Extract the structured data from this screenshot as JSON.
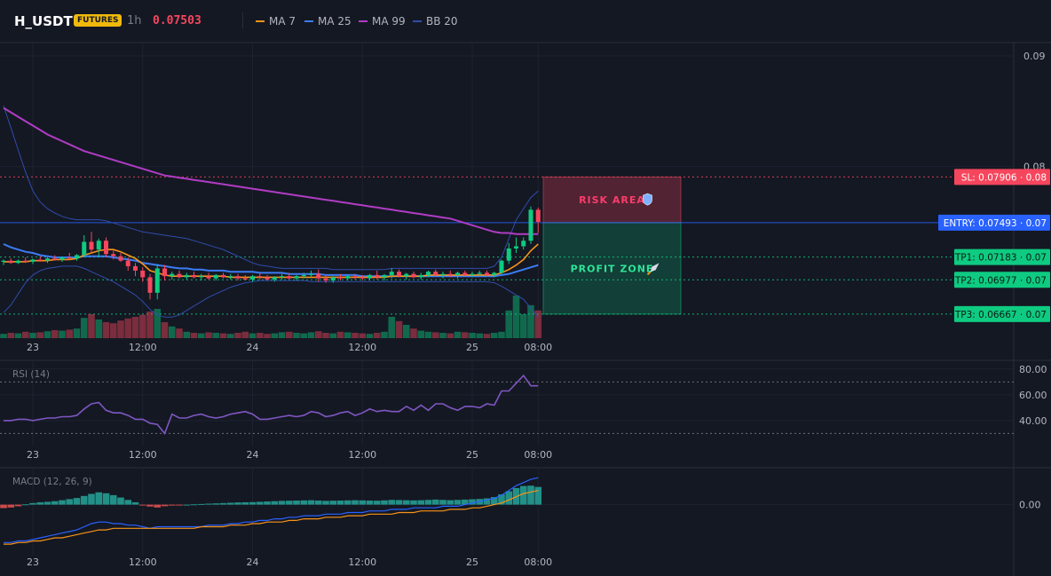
{
  "header": {
    "symbol": "H_USDT",
    "badge": "FUTURES",
    "timeframe": "1h",
    "price": "0.07503",
    "indicators": [
      {
        "label": "MA 7",
        "color": "#f7931a"
      },
      {
        "label": "MA 25",
        "color": "#3b7cf4"
      },
      {
        "label": "MA 99",
        "color": "#b03cc4"
      },
      {
        "label": "BB 20",
        "color": "#2f4dab"
      }
    ]
  },
  "chart_data": {
    "type": "candlestick",
    "x_labels": [
      "23",
      "12:00",
      "24",
      "12:00",
      "25",
      "08:00"
    ],
    "price_axis": {
      "ylim": [
        0.0645,
        0.0912
      ],
      "ticks": [
        {
          "v": 0.09,
          "label": "0.09"
        },
        {
          "v": 0.08,
          "label": "0.08"
        }
      ]
    },
    "candles": [
      [
        0.0714,
        0.0716,
        0.0711,
        0.0715
      ],
      [
        0.0715,
        0.0717,
        0.0712,
        0.0713
      ],
      [
        0.0713,
        0.0716,
        0.0712,
        0.0715
      ],
      [
        0.0715,
        0.0718,
        0.0713,
        0.0714
      ],
      [
        0.0714,
        0.0717,
        0.0712,
        0.0716
      ],
      [
        0.0716,
        0.0719,
        0.0714,
        0.0715
      ],
      [
        0.0715,
        0.0718,
        0.0713,
        0.0717
      ],
      [
        0.0717,
        0.072,
        0.0715,
        0.0716
      ],
      [
        0.0716,
        0.0719,
        0.0714,
        0.0718
      ],
      [
        0.0718,
        0.0722,
        0.0716,
        0.0717
      ],
      [
        0.0717,
        0.0721,
        0.0715,
        0.072
      ],
      [
        0.072,
        0.0738,
        0.0718,
        0.0732
      ],
      [
        0.0732,
        0.0741,
        0.0722,
        0.0725
      ],
      [
        0.0725,
        0.0735,
        0.0718,
        0.0733
      ],
      [
        0.0733,
        0.0736,
        0.0718,
        0.0721
      ],
      [
        0.0721,
        0.0724,
        0.0716,
        0.0719
      ],
      [
        0.0719,
        0.0722,
        0.0714,
        0.0715
      ],
      [
        0.0715,
        0.0718,
        0.0706,
        0.071
      ],
      [
        0.071,
        0.0713,
        0.0701,
        0.0706
      ],
      [
        0.0706,
        0.0709,
        0.0696,
        0.07
      ],
      [
        0.07,
        0.0703,
        0.068,
        0.0686
      ],
      [
        0.0686,
        0.0712,
        0.068,
        0.0708
      ],
      [
        0.0708,
        0.0711,
        0.0697,
        0.0701
      ],
      [
        0.0701,
        0.0705,
        0.0698,
        0.0703
      ],
      [
        0.0703,
        0.0706,
        0.0699,
        0.07
      ],
      [
        0.07,
        0.0704,
        0.0698,
        0.0702
      ],
      [
        0.0702,
        0.0705,
        0.0699,
        0.07
      ],
      [
        0.07,
        0.0703,
        0.0697,
        0.0701
      ],
      [
        0.0701,
        0.0704,
        0.0698,
        0.0699
      ],
      [
        0.0699,
        0.0703,
        0.0697,
        0.0702
      ],
      [
        0.0702,
        0.0704,
        0.0699,
        0.07
      ],
      [
        0.07,
        0.0703,
        0.0698,
        0.0701
      ],
      [
        0.0701,
        0.0703,
        0.0697,
        0.0699
      ],
      [
        0.0699,
        0.0702,
        0.0697,
        0.0698
      ],
      [
        0.0698,
        0.0702,
        0.0696,
        0.0701
      ],
      [
        0.0701,
        0.0704,
        0.0698,
        0.07
      ],
      [
        0.07,
        0.0702,
        0.0697,
        0.0698
      ],
      [
        0.0698,
        0.0701,
        0.0696,
        0.07
      ],
      [
        0.07,
        0.0703,
        0.0698,
        0.0701
      ],
      [
        0.0701,
        0.0704,
        0.0698,
        0.0699
      ],
      [
        0.0699,
        0.0702,
        0.0697,
        0.0701
      ],
      [
        0.0701,
        0.0704,
        0.0699,
        0.0702
      ],
      [
        0.0702,
        0.0706,
        0.07,
        0.0703
      ],
      [
        0.0703,
        0.0707,
        0.0696,
        0.0699
      ],
      [
        0.0699,
        0.0702,
        0.0695,
        0.0697
      ],
      [
        0.0697,
        0.0701,
        0.0695,
        0.07
      ],
      [
        0.07,
        0.0703,
        0.0697,
        0.0699
      ],
      [
        0.0699,
        0.0702,
        0.0697,
        0.0701
      ],
      [
        0.0701,
        0.0703,
        0.0698,
        0.07
      ],
      [
        0.07,
        0.0702,
        0.0697,
        0.0699
      ],
      [
        0.0699,
        0.0703,
        0.0697,
        0.0702
      ],
      [
        0.0702,
        0.0706,
        0.0698,
        0.07
      ],
      [
        0.07,
        0.0703,
        0.0697,
        0.0702
      ],
      [
        0.0702,
        0.0708,
        0.0699,
        0.0705
      ],
      [
        0.0705,
        0.0707,
        0.07,
        0.0701
      ],
      [
        0.0701,
        0.0704,
        0.0698,
        0.0703
      ],
      [
        0.0703,
        0.0705,
        0.0699,
        0.07
      ],
      [
        0.07,
        0.0704,
        0.0698,
        0.0702
      ],
      [
        0.0702,
        0.0706,
        0.07,
        0.0705
      ],
      [
        0.0705,
        0.0707,
        0.0701,
        0.0702
      ],
      [
        0.0702,
        0.0705,
        0.0699,
        0.0703
      ],
      [
        0.0703,
        0.0706,
        0.07,
        0.0702
      ],
      [
        0.0702,
        0.0705,
        0.0699,
        0.0704
      ],
      [
        0.0704,
        0.0706,
        0.0701,
        0.0702
      ],
      [
        0.0702,
        0.0705,
        0.07,
        0.0703
      ],
      [
        0.0703,
        0.0706,
        0.0701,
        0.0704
      ],
      [
        0.0704,
        0.0706,
        0.0701,
        0.0702
      ],
      [
        0.0702,
        0.0705,
        0.07,
        0.0704
      ],
      [
        0.0704,
        0.0716,
        0.0703,
        0.0715
      ],
      [
        0.0715,
        0.0731,
        0.0712,
        0.0726
      ],
      [
        0.0726,
        0.0736,
        0.0722,
        0.0728
      ],
      [
        0.0728,
        0.0736,
        0.0725,
        0.0733
      ],
      [
        0.0733,
        0.0764,
        0.073,
        0.0761
      ],
      [
        0.0761,
        0.0763,
        0.074,
        0.075
      ]
    ],
    "volume": [
      8,
      10,
      9,
      12,
      10,
      11,
      13,
      15,
      14,
      16,
      18,
      38,
      45,
      35,
      30,
      28,
      33,
      37,
      40,
      44,
      50,
      55,
      30,
      22,
      18,
      12,
      10,
      9,
      11,
      10,
      9,
      8,
      10,
      12,
      9,
      10,
      8,
      9,
      11,
      12,
      10,
      9,
      11,
      13,
      10,
      9,
      12,
      11,
      10,
      9,
      8,
      10,
      12,
      40,
      32,
      25,
      18,
      14,
      12,
      11,
      10,
      9,
      12,
      11,
      10,
      9,
      8,
      10,
      12,
      52,
      80,
      45,
      62,
      52
    ],
    "overlays": {
      "ma7": [
        0.0714,
        0.0714,
        0.0714,
        0.0714,
        0.0715,
        0.0715,
        0.0715,
        0.0716,
        0.0716,
        0.0716,
        0.0717,
        0.072,
        0.0722,
        0.0724,
        0.0725,
        0.0725,
        0.0723,
        0.072,
        0.0717,
        0.0712,
        0.0706,
        0.0704,
        0.0702,
        0.0701,
        0.0701,
        0.0701,
        0.0701,
        0.0701,
        0.0701,
        0.0701,
        0.0701,
        0.07,
        0.07,
        0.07,
        0.07,
        0.07,
        0.07,
        0.07,
        0.07,
        0.07,
        0.07,
        0.07,
        0.07,
        0.07,
        0.07,
        0.07,
        0.07,
        0.07,
        0.07,
        0.07,
        0.07,
        0.07,
        0.07,
        0.0701,
        0.0701,
        0.0701,
        0.0701,
        0.0701,
        0.0702,
        0.0702,
        0.0702,
        0.0702,
        0.0702,
        0.0702,
        0.0702,
        0.0702,
        0.0702,
        0.0702,
        0.0704,
        0.0707,
        0.0711,
        0.0716,
        0.0724,
        0.073
      ],
      "ma25": [
        0.073,
        0.0727,
        0.0725,
        0.0723,
        0.0722,
        0.072,
        0.0719,
        0.0718,
        0.0718,
        0.0718,
        0.0718,
        0.0719,
        0.0719,
        0.0719,
        0.0719,
        0.0718,
        0.0717,
        0.0716,
        0.0715,
        0.0713,
        0.0712,
        0.0711,
        0.071,
        0.0709,
        0.0708,
        0.0708,
        0.0707,
        0.0707,
        0.0706,
        0.0706,
        0.0706,
        0.0705,
        0.0705,
        0.0705,
        0.0705,
        0.0704,
        0.0704,
        0.0704,
        0.0704,
        0.0703,
        0.0703,
        0.0703,
        0.0703,
        0.0703,
        0.0702,
        0.0702,
        0.0702,
        0.0702,
        0.0702,
        0.0701,
        0.0701,
        0.0701,
        0.0701,
        0.0701,
        0.0701,
        0.0701,
        0.0701,
        0.0701,
        0.0701,
        0.0701,
        0.0701,
        0.0701,
        0.0701,
        0.0701,
        0.0701,
        0.0701,
        0.0701,
        0.0701,
        0.0702,
        0.0703,
        0.0705,
        0.0707,
        0.0709,
        0.0711
      ],
      "ma99": [
        0.0853,
        0.0849,
        0.0845,
        0.0841,
        0.0837,
        0.0833,
        0.0829,
        0.0826,
        0.0823,
        0.082,
        0.0817,
        0.0814,
        0.0812,
        0.081,
        0.0808,
        0.0806,
        0.0804,
        0.0802,
        0.08,
        0.0798,
        0.0796,
        0.0794,
        0.0792,
        0.0791,
        0.079,
        0.0789,
        0.0788,
        0.0787,
        0.0786,
        0.0785,
        0.0784,
        0.0783,
        0.0782,
        0.0781,
        0.078,
        0.0779,
        0.0778,
        0.0777,
        0.0776,
        0.0775,
        0.0774,
        0.0773,
        0.0772,
        0.0771,
        0.077,
        0.0769,
        0.0768,
        0.0767,
        0.0766,
        0.0765,
        0.0764,
        0.0763,
        0.0762,
        0.0761,
        0.076,
        0.0759,
        0.0758,
        0.0757,
        0.0756,
        0.0755,
        0.0754,
        0.0753,
        0.0751,
        0.0749,
        0.0747,
        0.0745,
        0.0743,
        0.0741,
        0.074,
        0.074,
        0.0739,
        0.0739,
        0.0739,
        0.0739
      ],
      "bb_upper": [
        0.0855,
        0.0835,
        0.0815,
        0.0795,
        0.0778,
        0.0768,
        0.0762,
        0.0758,
        0.0755,
        0.0753,
        0.0752,
        0.0752,
        0.0752,
        0.0752,
        0.0751,
        0.0749,
        0.0747,
        0.0745,
        0.0743,
        0.0741,
        0.074,
        0.0739,
        0.0738,
        0.0737,
        0.0736,
        0.0735,
        0.0733,
        0.0731,
        0.0729,
        0.0727,
        0.0725,
        0.0722,
        0.0719,
        0.0716,
        0.0713,
        0.0711,
        0.071,
        0.0709,
        0.0708,
        0.0708,
        0.0708,
        0.0708,
        0.0708,
        0.0708,
        0.0708,
        0.0707,
        0.0707,
        0.0707,
        0.0707,
        0.0707,
        0.0707,
        0.0707,
        0.0707,
        0.0708,
        0.0708,
        0.0708,
        0.0708,
        0.0708,
        0.0708,
        0.0708,
        0.0708,
        0.0708,
        0.0708,
        0.0708,
        0.0708,
        0.0708,
        0.0708,
        0.071,
        0.0718,
        0.0735,
        0.0752,
        0.0762,
        0.0772,
        0.0778
      ],
      "bb_lower": [
        0.0668,
        0.0675,
        0.0685,
        0.0695,
        0.0702,
        0.0706,
        0.0708,
        0.0709,
        0.071,
        0.071,
        0.071,
        0.0708,
        0.0705,
        0.0702,
        0.0699,
        0.0696,
        0.0692,
        0.0688,
        0.0684,
        0.0678,
        0.0671,
        0.0666,
        0.0664,
        0.0664,
        0.0666,
        0.067,
        0.0674,
        0.0678,
        0.0682,
        0.0685,
        0.0688,
        0.0691,
        0.0693,
        0.0695,
        0.0696,
        0.0697,
        0.0697,
        0.0697,
        0.0697,
        0.0697,
        0.0697,
        0.0697,
        0.0696,
        0.0696,
        0.0696,
        0.0696,
        0.0696,
        0.0696,
        0.0696,
        0.0696,
        0.0696,
        0.0696,
        0.0696,
        0.0696,
        0.0696,
        0.0696,
        0.0696,
        0.0696,
        0.0696,
        0.0696,
        0.0696,
        0.0696,
        0.0696,
        0.0696,
        0.0696,
        0.0696,
        0.0696,
        0.0695,
        0.0692,
        0.0688,
        0.0684,
        0.068,
        0.0672,
        0.0664
      ]
    },
    "levels": [
      {
        "name": "SL",
        "value": 0.07906,
        "label": "SL: 0.07906 · 0.08",
        "color": "#f6465d",
        "style": "dotted"
      },
      {
        "name": "ENTRY",
        "value": 0.07493,
        "label": "ENTRY: 0.07493 · 0.07",
        "color": "#2962ff",
        "style": "solid"
      },
      {
        "name": "TP1",
        "value": 0.07183,
        "label": "TP1: 0.07183 · 0.07",
        "color": "#0ecb81",
        "style": "dotted"
      },
      {
        "name": "TP2",
        "value": 0.06977,
        "label": "TP2: 0.06977 · 0.07",
        "color": "#0ecb81",
        "style": "dotted"
      },
      {
        "name": "TP3",
        "value": 0.06667,
        "label": "TP3: 0.06667 · 0.07",
        "color": "#0ecb81",
        "style": "dotted"
      }
    ],
    "zones": [
      {
        "name": "risk",
        "label": "RISK AREA",
        "icon": "shield-icon",
        "from": 0.07493,
        "to": 0.07906,
        "color": "#f6465d"
      },
      {
        "name": "profit",
        "label": "PROFIT ZONE",
        "icon": "rocket-icon",
        "from": 0.06667,
        "to": 0.07493,
        "color": "#0ecb81"
      }
    ],
    "rsi": {
      "title": "RSI (14)",
      "ylim": [
        22,
        84
      ],
      "ticks": [
        {
          "v": 80,
          "label": "80.00"
        },
        {
          "v": 60,
          "label": "60.00"
        },
        {
          "v": 40,
          "label": "40.00"
        }
      ],
      "bands": [
        70,
        30
      ],
      "values": [
        40,
        40,
        41,
        41,
        40,
        41,
        42,
        42,
        43,
        43,
        44,
        49,
        53,
        54,
        48,
        46,
        46,
        44,
        41,
        41,
        38,
        37,
        30,
        45,
        42,
        42,
        44,
        45,
        43,
        42,
        43,
        45,
        46,
        47,
        45,
        41,
        41,
        42,
        43,
        44,
        43,
        44,
        47,
        46,
        43,
        44,
        46,
        47,
        44,
        46,
        49,
        47,
        48,
        47,
        47,
        51,
        48,
        52,
        48,
        53,
        53,
        50,
        48,
        51,
        51,
        50,
        53,
        52,
        63,
        63,
        69,
        75,
        67,
        67
      ]
    },
    "macd": {
      "title": "MACD (12, 26, 9)",
      "ylim": [
        -0.003,
        0.002
      ],
      "ticks": [
        {
          "v": 0,
          "label": "0.00"
        }
      ],
      "hist": [
        -0.00022,
        -0.00018,
        -0.0001,
        2e-05,
        0.0001,
        0.00015,
        0.00018,
        0.00022,
        0.00028,
        0.00035,
        0.00042,
        0.00055,
        0.00068,
        0.00078,
        0.00072,
        0.0006,
        0.00045,
        0.0003,
        0.00015,
        -2e-05,
        -0.00012,
        -0.00018,
        -0.0001,
        -6e-05,
        -3e-05,
        0.0,
        2e-05,
        4e-05,
        6e-05,
        8e-05,
        0.0001,
        0.00012,
        0.00014,
        0.00015,
        0.00016,
        0.00018,
        0.0002,
        0.00022,
        0.00024,
        0.00025,
        0.00026,
        0.00027,
        0.00028,
        0.00026,
        0.00024,
        0.00025,
        0.00026,
        0.00027,
        0.00028,
        0.00027,
        0.00026,
        0.00025,
        0.00027,
        0.0003,
        0.00029,
        0.00028,
        0.00027,
        0.00028,
        0.0003,
        0.00032,
        0.0003,
        0.00028,
        0.0003,
        0.00032,
        0.00034,
        0.00036,
        0.0004,
        0.00048,
        0.00065,
        0.00085,
        0.00105,
        0.00118,
        0.0012,
        0.00112
      ],
      "macd_line": [
        -0.0024,
        -0.0024,
        -0.0023,
        -0.0023,
        -0.0022,
        -0.0021,
        -0.002,
        -0.0019,
        -0.0018,
        -0.0017,
        -0.0016,
        -0.0014,
        -0.0012,
        -0.0011,
        -0.0011,
        -0.0012,
        -0.0012,
        -0.0013,
        -0.0013,
        -0.0014,
        -0.0015,
        -0.0014,
        -0.0014,
        -0.0014,
        -0.0014,
        -0.0014,
        -0.0014,
        -0.0014,
        -0.0013,
        -0.0013,
        -0.0013,
        -0.0012,
        -0.0012,
        -0.0011,
        -0.0011,
        -0.001,
        -0.001,
        -0.0009,
        -0.0009,
        -0.0008,
        -0.0008,
        -0.0007,
        -0.0007,
        -0.0007,
        -0.0006,
        -0.0006,
        -0.0006,
        -0.0005,
        -0.0005,
        -0.0005,
        -0.0004,
        -0.0004,
        -0.0004,
        -0.0003,
        -0.0003,
        -0.0003,
        -0.0002,
        -0.0002,
        -0.0002,
        -0.0002,
        -0.0001,
        -0.0001,
        -0.0001,
        0.0,
        0.0001,
        0.0002,
        0.0003,
        0.0004,
        0.0006,
        0.0009,
        0.0012,
        0.0014,
        0.0016,
        0.0017
      ],
      "signal_line": [
        -0.0025,
        -0.0025,
        -0.0024,
        -0.0024,
        -0.0023,
        -0.0023,
        -0.0022,
        -0.0021,
        -0.0021,
        -0.002,
        -0.0019,
        -0.0018,
        -0.0017,
        -0.0016,
        -0.0016,
        -0.0015,
        -0.0015,
        -0.0015,
        -0.0015,
        -0.0015,
        -0.0015,
        -0.0015,
        -0.0015,
        -0.0015,
        -0.0015,
        -0.0015,
        -0.0015,
        -0.0014,
        -0.0014,
        -0.0014,
        -0.0014,
        -0.0013,
        -0.0013,
        -0.0013,
        -0.0012,
        -0.0012,
        -0.0011,
        -0.0011,
        -0.0011,
        -0.001,
        -0.001,
        -0.0009,
        -0.0009,
        -0.0009,
        -0.0008,
        -0.0008,
        -0.0008,
        -0.0007,
        -0.0007,
        -0.0007,
        -0.0006,
        -0.0006,
        -0.0006,
        -0.0006,
        -0.0005,
        -0.0005,
        -0.0005,
        -0.0004,
        -0.0004,
        -0.0004,
        -0.0004,
        -0.0003,
        -0.0003,
        -0.0003,
        -0.0002,
        -0.0002,
        -0.0001,
        0.0,
        0.0001,
        0.0003,
        0.0005,
        0.0007,
        0.0008,
        0.0009
      ]
    }
  }
}
